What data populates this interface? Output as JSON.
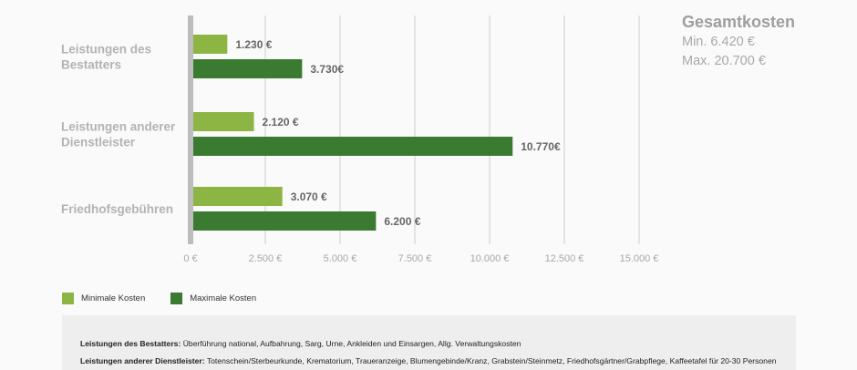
{
  "chart_data": {
    "type": "bar",
    "orientation": "horizontal",
    "categories": [
      "Leistungen des Bestatters",
      "Leistungen anderer Dienstleister",
      "Friedhofsgebühren"
    ],
    "category_label_lines": [
      [
        "Leistungen des",
        "Bestatters"
      ],
      [
        "Leistungen anderer",
        "Dienstleister"
      ],
      [
        "Friedhofsgebühren"
      ]
    ],
    "series": [
      {
        "name": "Minimale Kosten",
        "color": "#8db543",
        "values": [
          1230,
          2120,
          3070
        ],
        "labels": [
          "1.230 €",
          "2.120 €",
          "3.070 €"
        ]
      },
      {
        "name": "Maximale Kosten",
        "color": "#3a7a31",
        "values": [
          3730,
          10770,
          6200
        ],
        "labels": [
          "3.730€",
          "10.770€",
          "6.200 €"
        ]
      }
    ],
    "xlim": [
      0,
      15000
    ],
    "xticks": [
      0,
      2500,
      5000,
      7500,
      10000,
      12500,
      15000
    ],
    "xtick_labels": [
      "0 €",
      "2.500 €",
      "5.000 €",
      "7.500 €",
      "10.000 €",
      "12.500 €",
      "15.000 €"
    ],
    "grid": true,
    "legend_position": "bottom-left"
  },
  "summary": {
    "title": "Gesamtkosten",
    "min": "Min. 6.420 €",
    "max": "Max. 20.700 €"
  },
  "legend": [
    {
      "label": "Minimale Kosten",
      "color": "#8db543"
    },
    {
      "label": "Maximale Kosten",
      "color": "#3a7a31"
    }
  ],
  "notes": [
    {
      "key": "Leistungen des Bestatters:",
      "text": " Überführung national, Aufbahrung, Sarg, Urne, Ankleiden und Einsargen, Allg. Verwaltungskosten"
    },
    {
      "key": "Leistungen anderer Dienstleister:",
      "text": " Totenschein/Sterbeurkunde, Krematorium, Traueranzeige, Blumengebinde/Kranz, Grabstein/Steinmetz, Friedhofsgärtner/Grabpflege, Kaffeetafel für 20-30 Personen"
    }
  ]
}
